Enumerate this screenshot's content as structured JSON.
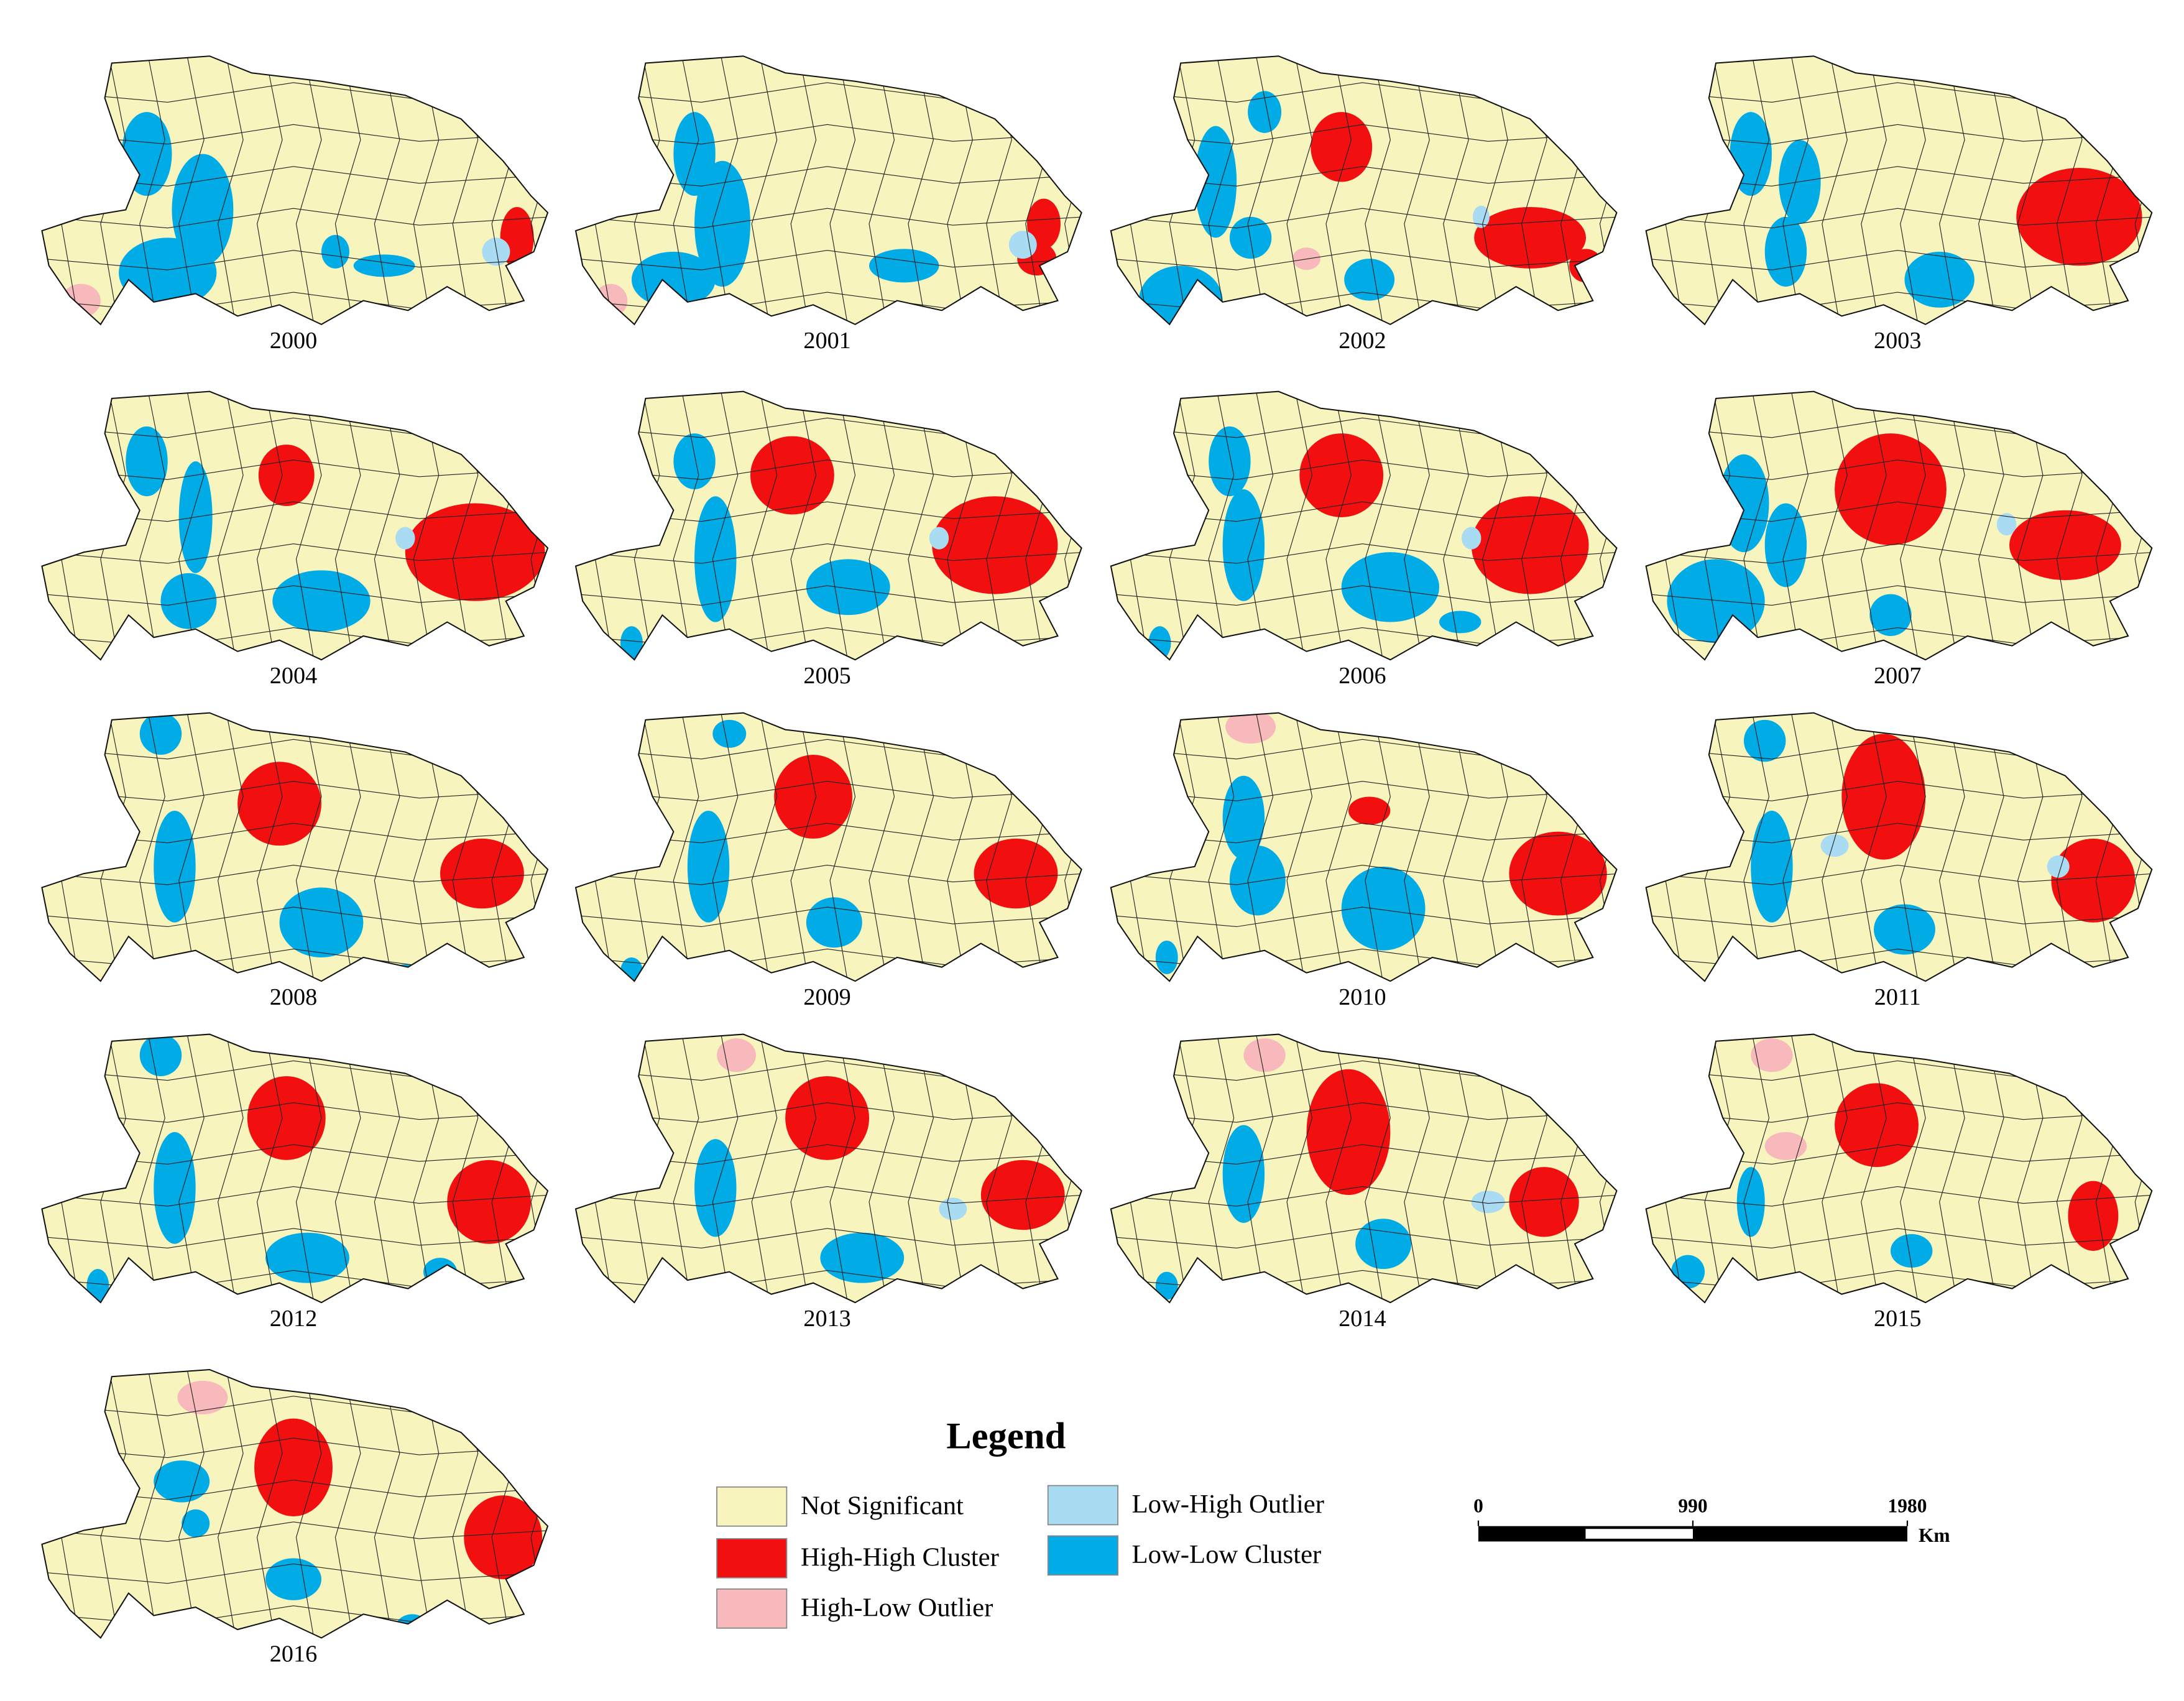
{
  "map_titles": [
    "2000",
    "2001",
    "2002",
    "2003",
    "2004",
    "2005",
    "2006",
    "2007",
    "2008",
    "2009",
    "2010",
    "2011",
    "2012",
    "2013",
    "2014",
    "2015",
    "2016"
  ],
  "legend": {
    "title": "Legend",
    "items": [
      {
        "label": "Not Significant",
        "color": "#f7f4bd"
      },
      {
        "label": "High-High Cluster",
        "color": "#f20f0f"
      },
      {
        "label": "High-Low Outlier",
        "color": "#f8b9bd"
      },
      {
        "label": "Low-High Outlier",
        "color": "#a9dcf2"
      },
      {
        "label": "Low-Low Cluster",
        "color": "#00abe6"
      }
    ]
  },
  "scale_bar": {
    "ticks": [
      0,
      990,
      1980
    ],
    "unit": "Km"
  }
}
